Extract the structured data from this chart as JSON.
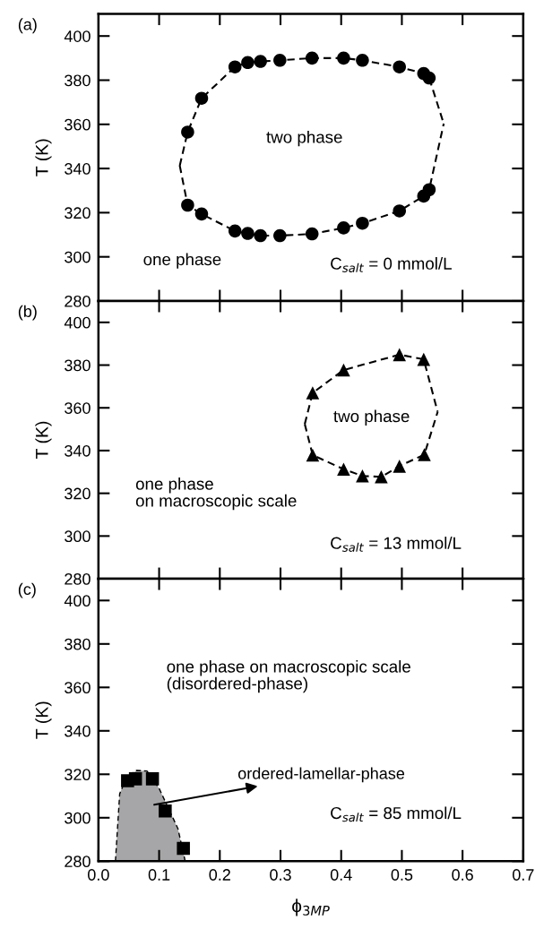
{
  "chart_data": [
    {
      "type": "scatter",
      "title": "(a)",
      "ylabel": "T (K)",
      "xlim": [
        0.0,
        0.7
      ],
      "ylim": [
        280,
        410
      ],
      "xticks": [
        0.1,
        0.2,
        0.3,
        0.4,
        0.5,
        0.6
      ],
      "yticks": [
        280,
        300,
        320,
        340,
        360,
        380,
        400
      ],
      "tick_labels": "y",
      "annotations": [
        "two phase",
        "one phase",
        "C$_{salt}$ = 0 mmol/L"
      ],
      "series": [
        {
          "type": "line",
          "color": "#000000",
          "marker": "none",
          "line_style": "dashed",
          "x": [
            0.134,
            0.147,
            0.17,
            0.225,
            0.246,
            0.267,
            0.299,
            0.352,
            0.404,
            0.435,
            0.496,
            0.536,
            0.545,
            0.569,
            0.134,
            0.147,
            0.17,
            0.225,
            0.246,
            0.267,
            0.299,
            0.352,
            0.404,
            0.435,
            0.496,
            0.536,
            0.545,
            0.569
          ],
          "values": [
            341.3,
            356.5,
            371.8,
            386,
            388,
            388.5,
            389,
            390,
            390,
            389,
            386,
            383,
            381,
            360.3,
            341.3,
            323.4,
            319.4,
            311.7,
            310.6,
            309.6,
            309.6,
            310.4,
            313.1,
            315.2,
            320.8,
            327.5,
            330.4,
            360.3
          ]
        },
        {
          "color": "#000000",
          "marker": "circle",
          "x": [
            0.147,
            0.17,
            0.225,
            0.246,
            0.267,
            0.299,
            0.352,
            0.404,
            0.435,
            0.496,
            0.536,
            0.545,
            0.147,
            0.17,
            0.225,
            0.246,
            0.267,
            0.299,
            0.352,
            0.404,
            0.435,
            0.496,
            0.536,
            0.545
          ],
          "values": [
            356.5,
            371.8,
            386,
            388,
            388.5,
            389,
            390,
            390,
            389,
            386,
            383,
            381,
            323.4,
            319.4,
            311.7,
            310.6,
            309.6,
            309.6,
            310.4,
            313.1,
            315.2,
            320.8,
            327.5,
            330.4
          ]
        }
      ]
    },
    {
      "type": "scatter",
      "title": "(b)",
      "ylabel": "T (K)",
      "xlim": [
        0.0,
        0.7
      ],
      "ylim": [
        280,
        410
      ],
      "xticks": [
        0.1,
        0.2,
        0.3,
        0.4,
        0.5,
        0.6
      ],
      "yticks": [
        280,
        300,
        320,
        340,
        360,
        380,
        400
      ],
      "tick_labels": "y",
      "annotations": [
        "two phase",
        "one phase\non macroscopic scale",
        "C$_{salt}$ = 13 mmol/L"
      ],
      "series": [
        {
          "type": "line",
          "color": "#000000",
          "marker": "none",
          "line_style": "dashed",
          "x": [
            0.34,
            0.353,
            0.404,
            0.496,
            0.536,
            0.559,
            0.34,
            0.353,
            0.404,
            0.435,
            0.466,
            0.496,
            0.537,
            0.559
          ],
          "values": [
            352.4,
            367,
            377.7,
            384.9,
            382.7,
            358.1,
            352.4,
            337.9,
            331.3,
            328.1,
            327.7,
            332.7,
            338.1,
            358.1
          ]
        },
        {
          "color": "#000000",
          "marker": "triangle",
          "x": [
            0.353,
            0.404,
            0.496,
            0.536,
            0.353,
            0.404,
            0.435,
            0.466,
            0.496,
            0.537
          ],
          "values": [
            367,
            377.7,
            384.9,
            382.7,
            337.9,
            331.3,
            328.1,
            327.7,
            332.7,
            338.1
          ]
        }
      ]
    },
    {
      "type": "scatter",
      "title": "(c)",
      "ylabel": "T (K)",
      "xlabel": "ϕ$_{3MP}$",
      "xlim": [
        0.0,
        0.7
      ],
      "ylim": [
        280,
        410
      ],
      "xticks": [
        {
          "value": 0,
          "label": "0.0"
        },
        0.1,
        0.2,
        0.3,
        0.4,
        0.5,
        0.6,
        0.7
      ],
      "yticks": [
        280,
        300,
        320,
        340,
        360,
        380,
        400
      ],
      "annotations": [
        "one phase on macroscopic scale\n(disordered-phase)",
        {
          "text": "ordered-lamellar-phase",
          "x": 0.092,
          "y": 306
        },
        "C$_{salt}$ = 85 mmol/L"
      ],
      "series": [
        {
          "type": "area",
          "color": "#a6a6a8",
          "marker": "none",
          "line_style": "dashed",
          "x": [
            0.028,
            0.035,
            0.047,
            0.063,
            0.08,
            0.1,
            0.131,
            0.143
          ],
          "values": [
            280,
            311,
            319,
            321.8,
            321.5,
            313.5,
            295,
            280
          ]
        },
        {
          "color": "#000000",
          "marker": "square",
          "x": [
            0.048,
            0.061,
            0.089,
            0.11,
            0.14
          ],
          "values": [
            317.0,
            317.9,
            317.9,
            303.1,
            285.9
          ]
        }
      ]
    }
  ]
}
